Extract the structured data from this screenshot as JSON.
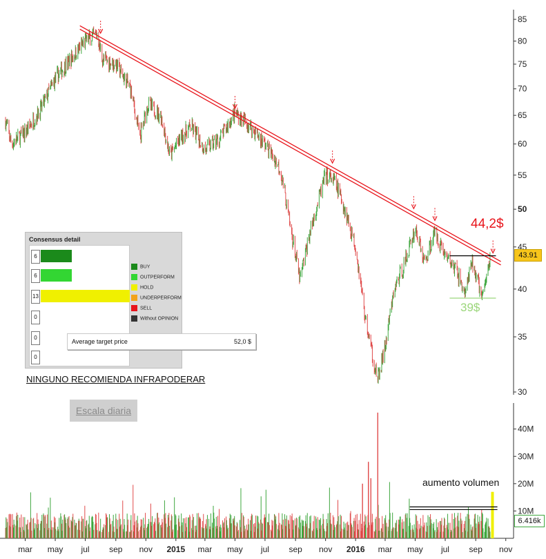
{
  "chart_data": {
    "type": "candlestick-with-volume",
    "title": "",
    "price_axis": {
      "scale": "log",
      "range": [
        30,
        86
      ],
      "ticks": [
        30,
        35,
        40,
        45,
        50,
        55,
        60,
        65,
        70,
        75,
        80,
        85
      ],
      "bold_ticks": [
        50
      ]
    },
    "volume_axis": {
      "range": [
        0,
        48
      ],
      "unit": "M",
      "ticks": [
        {
          "value": 10,
          "label": "10M"
        },
        {
          "value": 20,
          "label": "20M"
        },
        {
          "value": 30,
          "label": "30M"
        },
        {
          "value": 40,
          "label": "40M"
        }
      ]
    },
    "x_axis": {
      "range": [
        "2014-01-20",
        "2016-11-14"
      ],
      "ticks": [
        {
          "date": "2014-03-01",
          "label": "mar",
          "bold": false
        },
        {
          "date": "2014-05-01",
          "label": "may",
          "bold": false
        },
        {
          "date": "2014-07-01",
          "label": "jul",
          "bold": false
        },
        {
          "date": "2014-09-01",
          "label": "sep",
          "bold": false
        },
        {
          "date": "2014-11-01",
          "label": "nov",
          "bold": false
        },
        {
          "date": "2015-01-01",
          "label": "2015",
          "bold": true
        },
        {
          "date": "2015-03-01",
          "label": "mar",
          "bold": false
        },
        {
          "date": "2015-05-01",
          "label": "may",
          "bold": false
        },
        {
          "date": "2015-07-01",
          "label": "jul",
          "bold": false
        },
        {
          "date": "2015-09-01",
          "label": "sep",
          "bold": false
        },
        {
          "date": "2015-11-01",
          "label": "nov",
          "bold": false
        },
        {
          "date": "2016-01-01",
          "label": "2016",
          "bold": true
        },
        {
          "date": "2016-03-01",
          "label": "mar",
          "bold": false
        },
        {
          "date": "2016-05-01",
          "label": "may",
          "bold": false
        },
        {
          "date": "2016-07-01",
          "label": "jul",
          "bold": false
        },
        {
          "date": "2016-09-01",
          "label": "sep",
          "bold": false
        },
        {
          "date": "2016-11-01",
          "label": "nov",
          "bold": false
        }
      ]
    },
    "price_path": [
      [
        "2014-01-20",
        64
      ],
      [
        "2014-02-01",
        60
      ],
      [
        "2014-03-01",
        62
      ],
      [
        "2014-04-01",
        66
      ],
      [
        "2014-05-01",
        72
      ],
      [
        "2014-06-01",
        76
      ],
      [
        "2014-07-01",
        80
      ],
      [
        "2014-07-25",
        81.5
      ],
      [
        "2014-08-05",
        76
      ],
      [
        "2014-09-01",
        75
      ],
      [
        "2014-10-01",
        70
      ],
      [
        "2014-10-20",
        61
      ],
      [
        "2014-11-05",
        67
      ],
      [
        "2014-12-01",
        65
      ],
      [
        "2014-12-20",
        58
      ],
      [
        "2015-01-10",
        61
      ],
      [
        "2015-02-01",
        63
      ],
      [
        "2015-03-01",
        59
      ],
      [
        "2015-04-01",
        61
      ],
      [
        "2015-05-01",
        65.5
      ],
      [
        "2015-06-01",
        63
      ],
      [
        "2015-07-01",
        60
      ],
      [
        "2015-08-01",
        56
      ],
      [
        "2015-08-20",
        48
      ],
      [
        "2015-09-10",
        41
      ],
      [
        "2015-10-01",
        47
      ],
      [
        "2015-11-01",
        55
      ],
      [
        "2015-11-20",
        54
      ],
      [
        "2015-12-10",
        50
      ],
      [
        "2016-01-01",
        45
      ],
      [
        "2016-01-20",
        37
      ],
      [
        "2016-02-05",
        33
      ],
      [
        "2016-02-15",
        31
      ],
      [
        "2016-03-01",
        34
      ],
      [
        "2016-03-20",
        40
      ],
      [
        "2016-04-10",
        43
      ],
      [
        "2016-05-01",
        47.5
      ],
      [
        "2016-05-20",
        43
      ],
      [
        "2016-06-10",
        47
      ],
      [
        "2016-07-01",
        44
      ],
      [
        "2016-07-25",
        42
      ],
      [
        "2016-08-10",
        39.5
      ],
      [
        "2016-08-25",
        43
      ],
      [
        "2016-09-15",
        39
      ],
      [
        "2016-10-01",
        43.9
      ]
    ],
    "volume_spikes": [
      {
        "date": "2016-02-15",
        "value": 46
      },
      {
        "date": "2016-01-27",
        "value": 28
      },
      {
        "date": "2016-02-01",
        "value": 22
      },
      {
        "date": "2016-01-15",
        "value": 20
      }
    ],
    "volume_base": 6.5,
    "resistance_line": {
      "from": [
        "2014-06-20",
        83.5
      ],
      "to": [
        "2016-10-22",
        43.2
      ]
    },
    "resistance_touches": [
      "2014-08-01",
      "2015-05-01",
      "2015-11-15",
      "2016-04-28",
      "2016-06-10",
      "2016-10-06"
    ],
    "level_lines": [
      {
        "price": 43.9,
        "from": "2016-07-10",
        "to": "2016-10-12",
        "color": "#000000"
      },
      {
        "price": 39.0,
        "from": "2016-07-10",
        "to": "2016-10-12",
        "color": "#9bd67a"
      }
    ],
    "volume_level_lines": [
      {
        "value": 10.5,
        "from": "2016-04-20",
        "to": "2016-10-15"
      },
      {
        "value": 11.5,
        "from": "2016-04-20",
        "to": "2016-10-15"
      }
    ],
    "highlight_volume": {
      "date": "2016-10-05",
      "value": 17,
      "color": "#f0f000"
    },
    "last_price_label": "43.91",
    "last_volume_label": "6.416k",
    "colors": {
      "up": "#3da63d",
      "down": "#e04a4a",
      "resistance": "#e8141b"
    }
  },
  "annotations": {
    "target": "44,2$",
    "support": "39$",
    "infra": "NINGUNO RECOMIENDA INFRAPODERAR",
    "escala": "Escala diaria",
    "volume": "aumento volumen"
  },
  "consensus": {
    "title": "Consensus detail",
    "rows": [
      {
        "count": "6",
        "label": "BUY",
        "color": "#1b8a1b",
        "fraction": 0.3
      },
      {
        "count": "6",
        "label": "OUTPERFORM",
        "color": "#33d633",
        "fraction": 0.3
      },
      {
        "count": "13",
        "label": "HOLD",
        "color": "#f0f000",
        "fraction": 0.86
      },
      {
        "count": "0",
        "label": "UNDERPERFORM",
        "color": "#f2a31b",
        "fraction": 0
      },
      {
        "count": "0",
        "label": "SELL",
        "color": "#e8141b",
        "fraction": 0
      },
      {
        "count": "0",
        "label": "Without OPINION",
        "color": "#333333",
        "fraction": 0
      }
    ],
    "avg_label": "Average target price",
    "avg_value": "52,0 $"
  }
}
